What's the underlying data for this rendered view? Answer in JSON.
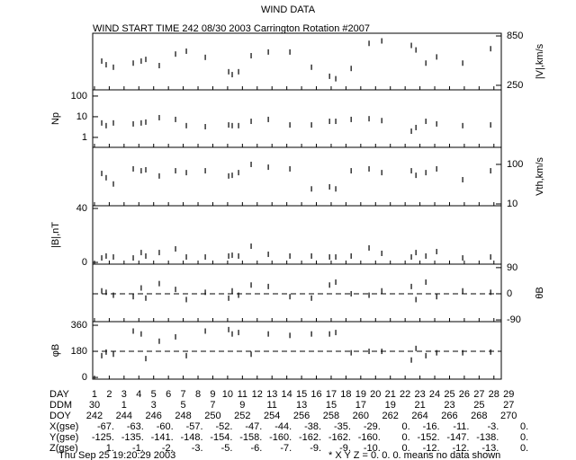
{
  "title": "WIND DATA",
  "subtitle": "WIND START TIME 242 08/30 2003 Carrington Rotation #2007",
  "chart_data": [
    {
      "type": "scatter",
      "label": "|V|,km/s",
      "label_side": "right",
      "log": false,
      "color": "#000000",
      "xlim": [
        0.88,
        28.5
      ],
      "ylim": [
        195,
        883
      ],
      "yticks": [
        250,
        850
      ],
      "x": [
        1.49,
        1.79,
        2.28,
        3.62,
        4.16,
        4.47,
        5.38,
        6.48,
        7.21,
        8.49,
        10.07,
        10.31,
        10.74,
        11.59,
        12.75,
        14.21,
        15.67,
        16.89,
        17.31,
        18.35,
        19.56,
        20.42,
        22.42,
        22.73,
        23.4,
        24.13,
        25.89,
        27.78
      ],
      "values": [
        545,
        500,
        470,
        520,
        545,
        565,
        490,
        630,
        665,
        590,
        415,
        380,
        415,
        610,
        655,
        655,
        470,
        360,
        330,
        455,
        760,
        790,
        735,
        680,
        520,
        595,
        520,
        695
      ]
    },
    {
      "type": "scatter",
      "label": "Np",
      "label_side": "left",
      "log": true,
      "color": "#000000",
      "xlim": [
        0.88,
        28.5
      ],
      "ylim": [
        0.33,
        200
      ],
      "yticks": [
        1,
        10,
        100
      ],
      "x": [
        1.49,
        1.79,
        2.28,
        3.62,
        4.16,
        4.47,
        5.38,
        6.48,
        7.21,
        8.49,
        10.07,
        10.31,
        10.74,
        11.59,
        12.75,
        14.21,
        15.67,
        16.89,
        17.31,
        18.35,
        19.56,
        20.42,
        22.42,
        22.73,
        23.4,
        24.13,
        25.89,
        27.78
      ],
      "values": [
        5,
        3.7,
        5,
        4.5,
        5,
        5.5,
        9,
        7.4,
        3.7,
        3.3,
        4,
        3.7,
        3.7,
        6,
        7.4,
        4,
        4,
        6,
        6,
        7.4,
        8,
        6.5,
        2,
        3,
        6,
        4.5,
        3.7,
        4
      ]
    },
    {
      "type": "scatter",
      "label": "Vth,km/s",
      "label_side": "right",
      "log": true,
      "color": "#000000",
      "xlim": [
        0.88,
        28.5
      ],
      "ylim": [
        9,
        270
      ],
      "yticks": [
        10,
        100
      ],
      "x": [
        1.49,
        1.79,
        2.28,
        3.62,
        4.16,
        4.47,
        5.38,
        6.48,
        7.21,
        8.49,
        10.07,
        10.31,
        10.74,
        11.59,
        12.75,
        14.21,
        15.67,
        16.89,
        17.31,
        18.35,
        19.56,
        20.42,
        22.42,
        22.73,
        23.4,
        24.13,
        25.89,
        27.78
      ],
      "values": [
        59,
        46,
        32,
        77,
        69,
        73,
        51,
        69,
        62,
        69,
        51,
        53,
        62,
        100,
        85,
        77,
        24,
        27,
        24,
        69,
        77,
        62,
        69,
        53,
        62,
        77,
        41,
        69
      ]
    },
    {
      "type": "scatter",
      "label": "|B|,nT",
      "label_side": "left",
      "log": false,
      "color": "#000000",
      "xlim": [
        0.88,
        28.5
      ],
      "ylim": [
        -1.3,
        42
      ],
      "yticks": [
        0,
        40
      ],
      "x": [
        1.49,
        1.79,
        2.28,
        3.62,
        4.16,
        4.47,
        5.38,
        6.48,
        7.21,
        8.49,
        10.07,
        10.31,
        10.74,
        11.59,
        12.75,
        14.21,
        15.67,
        16.89,
        17.31,
        18.35,
        19.56,
        20.42,
        22.42,
        22.73,
        23.4,
        24.13,
        25.89,
        27.78
      ],
      "values": [
        3.3,
        4.7,
        4,
        3.3,
        7.3,
        4.7,
        7.3,
        10,
        4,
        4,
        4.7,
        5.3,
        4.7,
        12,
        6,
        4.7,
        4.7,
        4,
        4,
        4.7,
        10.7,
        6.7,
        4,
        7.3,
        4.7,
        8,
        3.3,
        4
      ]
    },
    {
      "type": "scatter",
      "label": "θB",
      "label_side": "right",
      "log": false,
      "color": "#000000",
      "hline": 0,
      "xlim": [
        0.88,
        28.5
      ],
      "ylim": [
        -96,
        102
      ],
      "yticks": [
        -90,
        0,
        90
      ],
      "x": [
        1.49,
        1.79,
        2.28,
        3.62,
        4.16,
        4.47,
        5.38,
        6.48,
        7.21,
        8.49,
        10.07,
        10.31,
        10.74,
        11.59,
        12.75,
        14.21,
        15.67,
        16.89,
        17.31,
        18.35,
        19.56,
        20.42,
        22.42,
        22.73,
        23.4,
        24.13,
        25.89,
        27.78
      ],
      "values": [
        10,
        5,
        -5,
        -10,
        20,
        -15,
        35,
        15,
        -20,
        5,
        -15,
        10,
        -5,
        30,
        25,
        -10,
        -15,
        30,
        40,
        0,
        -5,
        10,
        25,
        -20,
        40,
        -10,
        10,
        5
      ]
    },
    {
      "type": "scatter",
      "label": "φB",
      "label_side": "left",
      "log": false,
      "color": "#000000",
      "hline": 180,
      "xlim": [
        0.88,
        28.5
      ],
      "ylim": [
        -12,
        385
      ],
      "yticks": [
        0,
        180,
        360
      ],
      "x": [
        1.49,
        1.79,
        2.28,
        3.62,
        4.16,
        4.47,
        5.38,
        6.48,
        7.21,
        8.49,
        10.07,
        10.31,
        10.74,
        11.59,
        12.75,
        14.21,
        15.67,
        16.89,
        17.31,
        18.35,
        19.56,
        20.42,
        22.42,
        22.73,
        23.4,
        24.13,
        25.89,
        27.78
      ],
      "values": [
        150,
        175,
        160,
        320,
        300,
        130,
        250,
        280,
        150,
        320,
        330,
        300,
        310,
        160,
        300,
        290,
        300,
        300,
        310,
        170,
        180,
        180,
        120,
        200,
        150,
        170,
        170,
        175
      ]
    }
  ],
  "table": {
    "rows": [
      {
        "label": "DAY",
        "values": [
          1,
          2,
          3,
          4,
          5,
          6,
          7,
          8,
          9,
          10,
          11,
          12,
          13,
          14,
          15,
          16,
          17,
          18,
          19,
          20,
          21,
          22,
          23,
          24,
          25,
          26,
          27,
          28,
          29
        ]
      },
      {
        "label": "DDM",
        "values": [
          30,
          1,
          3,
          5,
          7,
          9,
          11,
          13,
          15,
          17,
          19,
          21,
          23,
          25,
          27
        ]
      },
      {
        "label": "DOY",
        "values": [
          242,
          244,
          246,
          248,
          250,
          252,
          254,
          256,
          258,
          260,
          262,
          264,
          266,
          268,
          270
        ]
      },
      {
        "label": "X(gse)",
        "values": [
          "-67.",
          "-63.",
          "-60.",
          "-57.",
          "-52.",
          "-47.",
          "-44.",
          "-38.",
          "-35.",
          "-29.",
          "0.",
          "-16.",
          "-11.",
          "-3.",
          "0."
        ]
      },
      {
        "label": "Y(gse)",
        "values": [
          "-125.",
          "-135.",
          "-141.",
          "-148.",
          "-154.",
          "-158.",
          "-160.",
          "-162.",
          "-162.",
          "-160.",
          "0.",
          "-152.",
          "-147.",
          "-138.",
          "0."
        ]
      },
      {
        "label": "Z(gse)",
        "values": [
          "1.",
          "-1.",
          "-2.",
          "-3.",
          "-5.",
          "-6.",
          "-7.",
          "-9.",
          "-9.",
          "-10.",
          "0.",
          "-12.",
          "-12.",
          "-13.",
          "0."
        ]
      }
    ]
  },
  "footer": {
    "timestamp": "Thu Sep 25 19:20:29 2003",
    "note": "* X Y Z = 0. 0. 0. means no data shown"
  }
}
